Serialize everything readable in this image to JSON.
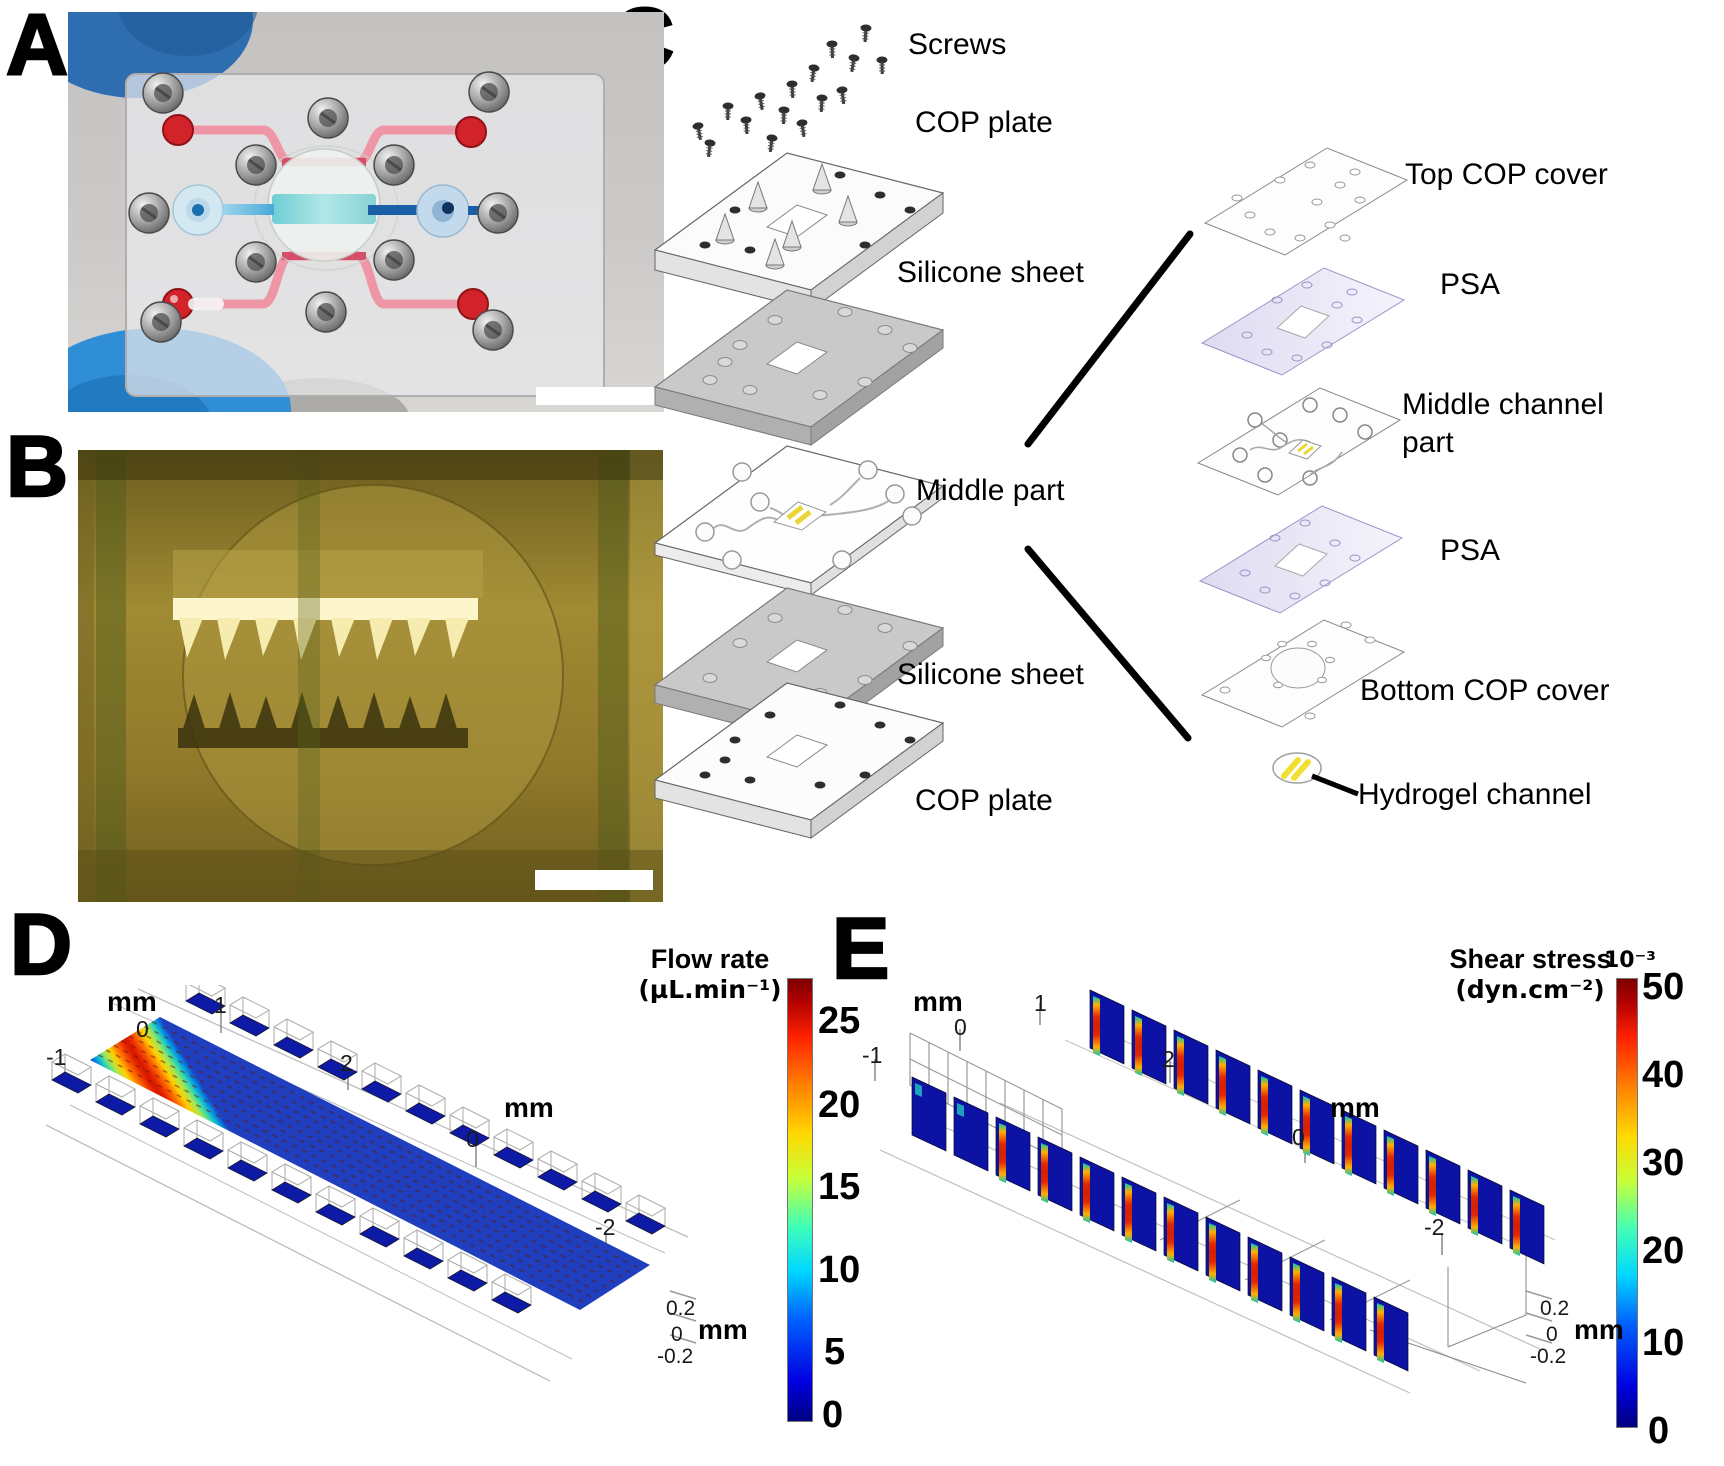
{
  "panels": {
    "a": {
      "letter": "A"
    },
    "b": {
      "letter": "B"
    },
    "c": {
      "letter": "C",
      "labels": {
        "screws": "Screws",
        "cop_plate_top": "COP plate",
        "silicone_top": "Silicone sheet",
        "middle_part": "Middle part",
        "silicone_bottom": "Silicone sheet",
        "cop_plate_bottom": "COP plate",
        "top_cop_cover": "Top COP cover",
        "psa_top": "PSA",
        "middle_channel_line1": "Middle channel",
        "middle_channel_line2": "part",
        "psa_bottom": "PSA",
        "bottom_cop_cover": "Bottom COP cover",
        "hydrogel_channel": "Hydrogel channel"
      }
    },
    "d": {
      "letter": "D",
      "title_line1": "Flow rate",
      "title_line2": "(µL.min⁻¹)",
      "colorbar_ticks": [
        "25",
        "20",
        "15",
        "10",
        "5",
        "0"
      ],
      "axes": {
        "x_label": "mm",
        "x_ticks": [
          "-1",
          "0",
          "1",
          "2"
        ],
        "y_label": "mm",
        "y_ticks": [
          "0",
          "-2"
        ],
        "z_label": "mm",
        "z_ticks": [
          "0.2",
          "0",
          "-0.2"
        ]
      }
    },
    "e": {
      "letter": "E",
      "title_line1": "Shear stress",
      "title_line2": "(dyn.cm⁻²)",
      "multiplier": "10⁻³",
      "colorbar_ticks": [
        "50",
        "40",
        "30",
        "20",
        "10",
        "0"
      ],
      "axes": {
        "x_label": "mm",
        "x_ticks": [
          "-1",
          "0",
          "1",
          "2"
        ],
        "y_label": "mm",
        "y_ticks": [
          "0",
          "-2"
        ],
        "z_label": "mm",
        "z_ticks": [
          "0.2",
          "0",
          "-0.2"
        ]
      }
    }
  },
  "colors": {
    "glove_blue": "#2d6db0",
    "dye_pink": "#ef96a6",
    "dye_red_port": "#d2222a",
    "dye_blue_dark": "#1b5fa8",
    "dye_cyan": "#63cbd2",
    "micrograph_olive": "#a08a33",
    "hydrogel_yellow": "#f0e032",
    "psa_lavender": "#e2dff2",
    "silicone_gray": "#c9c9c9",
    "jet_min": "#00007f",
    "jet_max": "#7f0000"
  },
  "chart_data": [
    {
      "panel": "D",
      "type": "heatmap",
      "render": "3D COMSOL-style channel slice plot",
      "title": "Flow rate",
      "units_label": "(µL.min⁻¹)",
      "colormap": "jet",
      "colorbar_range": [
        0,
        25
      ],
      "colorbar_ticks": [
        0,
        5,
        10,
        15,
        20,
        25
      ],
      "x_axis": {
        "label": "mm",
        "ticks": [
          -1,
          0,
          1,
          2
        ]
      },
      "y_axis": {
        "label": "mm",
        "ticks": [
          0,
          -2
        ]
      },
      "z_axis": {
        "label": "mm",
        "ticks": [
          0.2,
          0,
          -0.2
        ]
      },
      "summary": "Flow rate peaks near 25 µL·min⁻¹ along the central channel midline (red) and falls to ~0 (dark blue) inside the lateral micro-chambers on both sides."
    },
    {
      "panel": "E",
      "type": "heatmap",
      "render": "3D COMSOL-style wall slice plot",
      "title": "Shear stress",
      "units_label": "(dyn.cm⁻²)",
      "scale_factor": "10⁻³",
      "colormap": "jet",
      "colorbar_range": [
        0,
        50
      ],
      "colorbar_ticks": [
        0,
        10,
        20,
        30,
        40,
        50
      ],
      "x_axis": {
        "label": "mm",
        "ticks": [
          -1,
          0,
          1,
          2
        ]
      },
      "y_axis": {
        "label": "mm",
        "ticks": [
          0,
          -2
        ]
      },
      "z_axis": {
        "label": "mm",
        "ticks": [
          0.2,
          0,
          -0.2
        ]
      },
      "summary": "Shear stress is ~0 (dark blue) over chamber walls, with localized maxima up to ~50×10⁻³ dyn·cm⁻² (red/orange vertical streaks) at the chamber openings facing the central channel."
    }
  ]
}
